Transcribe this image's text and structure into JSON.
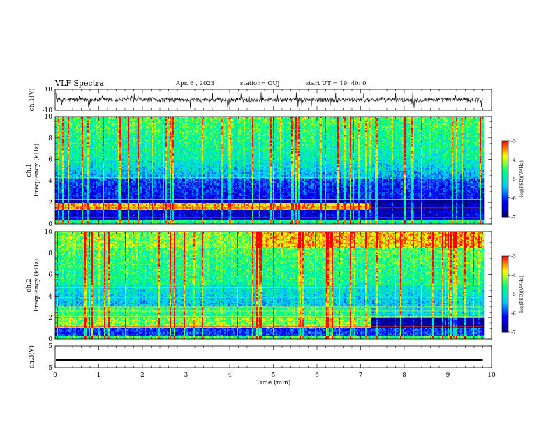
{
  "header": {
    "title": "VLF Spectra",
    "date": "Apr. 6 , 2023",
    "station": "station= OUJ",
    "start": "start UT =  19: 40: 0"
  },
  "chart_data": [
    {
      "type": "line",
      "panel": "ch1-waveform",
      "ylabel": "ch.1(V)",
      "ylim": [
        -10,
        10
      ],
      "yticks": [
        "10",
        "-10"
      ],
      "xlim": [
        0,
        10
      ],
      "series": [
        {
          "values_description": "",
          "mean": 0,
          "typical_amplitude": 2
        }
      ]
    },
    {
      "type": "heatmap",
      "panel": "ch1-spectrogram",
      "ylabel": "ch.1\nFrequency (kHz)",
      "ylim": [
        0,
        10
      ],
      "yticks": [
        "0",
        "2",
        "4",
        "6",
        "8",
        "10"
      ],
      "xlim": [
        0,
        10
      ],
      "colorbar": {
        "label": "log(PSD)(V²/Hz)",
        "range": [
          -7,
          -3
        ],
        "ticks": [
          "-3",
          "-4",
          "-5",
          "-6",
          "-7"
        ]
      },
      "data_end_min": 9.8,
      "band_change_min": 7.2
    },
    {
      "type": "heatmap",
      "panel": "ch2-spectrogram",
      "ylabel": "ch.2\nFrequency (kHz)",
      "ylim": [
        0,
        10
      ],
      "yticks": [
        "0",
        "2",
        "4",
        "6",
        "8",
        "10"
      ],
      "xlim": [
        0,
        10
      ],
      "colorbar": {
        "label": "log(PSD)(V²/Hz)",
        "range": [
          -7,
          -3
        ],
        "ticks": [
          "-3",
          "-4",
          "-5",
          "-6",
          "-7"
        ]
      },
      "data_end_min": 9.8,
      "band_change_min": 7.2
    },
    {
      "type": "line",
      "panel": "ch3-waveform",
      "ylabel": "ch.3(V)",
      "ylim": [
        -5,
        5
      ],
      "yticks": [
        "5",
        "-5"
      ],
      "xlim": [
        0,
        10
      ],
      "series": [
        {
          "constant_value": -1.5
        }
      ]
    }
  ],
  "xaxis": {
    "label": "Time (min)",
    "ticks": [
      "0",
      "1",
      "2",
      "3",
      "4",
      "5",
      "6",
      "7",
      "8",
      "9",
      "10"
    ]
  },
  "colors": {
    "colormap": [
      "#00007a",
      "#0000ff",
      "#00c8ff",
      "#00ff7f",
      "#ffff00",
      "#ff0000"
    ]
  }
}
